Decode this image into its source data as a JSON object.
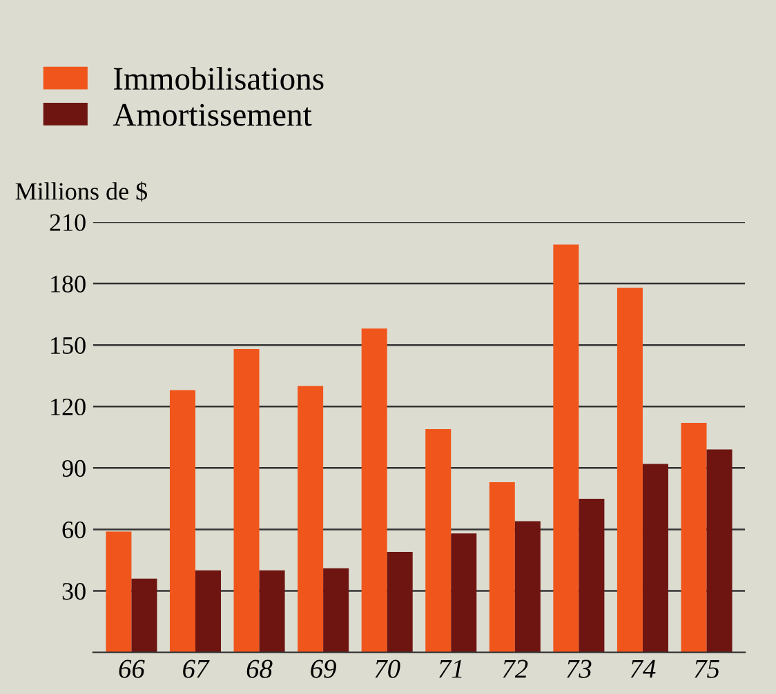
{
  "chart_data": {
    "type": "bar",
    "categories": [
      "66",
      "67",
      "68",
      "69",
      "70",
      "71",
      "72",
      "73",
      "74",
      "75"
    ],
    "series": [
      {
        "name": "Immobilisations",
        "color": "#f0561c",
        "values": [
          59,
          128,
          148,
          130,
          158,
          109,
          83,
          199,
          178,
          112
        ]
      },
      {
        "name": "Amortissement",
        "color": "#6e1512",
        "values": [
          36,
          40,
          40,
          41,
          49,
          58,
          64,
          75,
          92,
          99
        ]
      }
    ],
    "ylabel": "Millions de $",
    "ylim": [
      0,
      210
    ],
    "yticks": [
      30,
      60,
      90,
      120,
      150,
      180,
      210
    ],
    "grid": "y",
    "legend": "top left"
  }
}
